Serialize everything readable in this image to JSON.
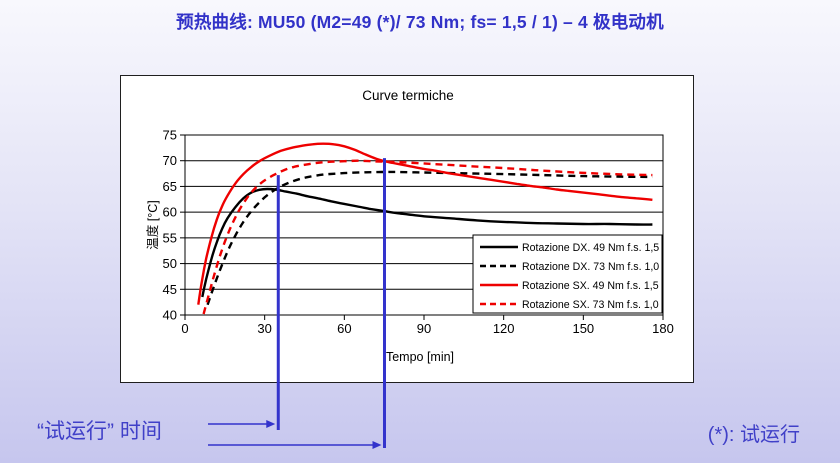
{
  "slide": {
    "title": "预热曲线: MU50 (M2=49 (*)/ 73 Nm; fs= 1,5 / 1) – 4 极电动机",
    "test_run_time_label": "“试运行” 时间",
    "footnote": "(*): 试运行",
    "accent_blue": "#3333cc",
    "background_top": "#f8f8fd",
    "background_bottom": "#c6c6ee"
  },
  "chart_data": {
    "type": "line",
    "title": "Curve termiche",
    "xlabel": "Tempo [min]",
    "ylabel": "温度 [°C]",
    "xlim": [
      0,
      180
    ],
    "ylim": [
      40,
      75
    ],
    "x_ticks": [
      0,
      30,
      60,
      90,
      120,
      150,
      180
    ],
    "y_ticks": [
      40,
      45,
      50,
      55,
      60,
      65,
      70,
      75
    ],
    "grid": "horizontal",
    "legend_position": "inside-right",
    "axis_color": "#000000",
    "series": [
      {
        "name": "Rotazione DX. 49 Nm f.s. 1,5",
        "color": "#000000",
        "style": "solid",
        "points": [
          [
            6.5,
            43.5
          ],
          [
            8,
            47
          ],
          [
            10,
            51
          ],
          [
            12,
            54.2
          ],
          [
            14,
            56.8
          ],
          [
            16,
            58.8
          ],
          [
            19,
            61
          ],
          [
            22,
            62.7
          ],
          [
            25,
            63.8
          ],
          [
            28,
            64.35
          ],
          [
            31,
            64.5
          ],
          [
            34,
            64.4
          ],
          [
            38,
            64
          ],
          [
            42,
            63.6
          ],
          [
            46,
            63.1
          ],
          [
            50,
            62.7
          ],
          [
            55,
            62.1
          ],
          [
            60,
            61.6
          ],
          [
            65,
            61.1
          ],
          [
            70,
            60.6
          ],
          [
            75,
            60.2
          ],
          [
            80,
            59.8
          ],
          [
            90,
            59.2
          ],
          [
            100,
            58.8
          ],
          [
            110,
            58.4
          ],
          [
            120,
            58.1
          ],
          [
            130,
            57.9
          ],
          [
            140,
            57.8
          ],
          [
            150,
            57.7
          ],
          [
            160,
            57.7
          ],
          [
            170,
            57.6
          ],
          [
            176,
            57.6
          ]
        ]
      },
      {
        "name": "Rotazione DX. 73 Nm f.s. 1,0",
        "color": "#000000",
        "style": "dashed",
        "points": [
          [
            8.5,
            42
          ],
          [
            10.5,
            45
          ],
          [
            13,
            48.5
          ],
          [
            16,
            52.3
          ],
          [
            19,
            55.5
          ],
          [
            22,
            58.1
          ],
          [
            25,
            60.2
          ],
          [
            28,
            61.9
          ],
          [
            31,
            63.3
          ],
          [
            35,
            64.7
          ],
          [
            39,
            65.7
          ],
          [
            43,
            66.4
          ],
          [
            47,
            66.9
          ],
          [
            52,
            67.3
          ],
          [
            57,
            67.5
          ],
          [
            62,
            67.65
          ],
          [
            68,
            67.75
          ],
          [
            74,
            67.8
          ],
          [
            80,
            67.8
          ],
          [
            90,
            67.7
          ],
          [
            100,
            67.6
          ],
          [
            110,
            67.5
          ],
          [
            120,
            67.4
          ],
          [
            135,
            67.2
          ],
          [
            150,
            67
          ],
          [
            165,
            66.9
          ],
          [
            176,
            66.85
          ]
        ]
      },
      {
        "name": "Rotazione SX. 49 Nm f.s. 1,5",
        "color": "#ee0000",
        "style": "solid",
        "points": [
          [
            5,
            42
          ],
          [
            6.5,
            47
          ],
          [
            8,
            51
          ],
          [
            10,
            55.2
          ],
          [
            12,
            58.6
          ],
          [
            14,
            61.2
          ],
          [
            16,
            63.2
          ],
          [
            19,
            65.6
          ],
          [
            22,
            67.4
          ],
          [
            25,
            68.8
          ],
          [
            28,
            69.9
          ],
          [
            32,
            71
          ],
          [
            36,
            71.9
          ],
          [
            40,
            72.5
          ],
          [
            44,
            72.9
          ],
          [
            48,
            73.2
          ],
          [
            52,
            73.3
          ],
          [
            56,
            73.2
          ],
          [
            60,
            72.8
          ],
          [
            64,
            72.1
          ],
          [
            68,
            71.2
          ],
          [
            72,
            70.4
          ],
          [
            76,
            69.8
          ],
          [
            80,
            69.4
          ],
          [
            85,
            68.9
          ],
          [
            90,
            68.4
          ],
          [
            95,
            68
          ],
          [
            100,
            67.5
          ],
          [
            105,
            67.1
          ],
          [
            110,
            66.7
          ],
          [
            115,
            66.3
          ],
          [
            120,
            65.9
          ],
          [
            125,
            65.5
          ],
          [
            130,
            65.1
          ],
          [
            135,
            64.8
          ],
          [
            140,
            64.4
          ],
          [
            145,
            64.1
          ],
          [
            150,
            63.8
          ],
          [
            155,
            63.5
          ],
          [
            160,
            63.2
          ],
          [
            165,
            62.9
          ],
          [
            170,
            62.7
          ],
          [
            176,
            62.4
          ]
        ]
      },
      {
        "name": "Rotazione SX. 73 Nm f.s. 1,0",
        "color": "#ee0000",
        "style": "dashed",
        "points": [
          [
            7,
            40.2
          ],
          [
            9,
            44
          ],
          [
            11,
            47.8
          ],
          [
            14,
            52.8
          ],
          [
            17,
            56.8
          ],
          [
            20,
            60
          ],
          [
            23,
            62.5
          ],
          [
            26,
            64.4
          ],
          [
            29,
            65.8
          ],
          [
            33,
            67.1
          ],
          [
            37,
            68.1
          ],
          [
            41,
            68.8
          ],
          [
            45,
            69.2
          ],
          [
            50,
            69.6
          ],
          [
            55,
            69.8
          ],
          [
            60,
            69.9
          ],
          [
            65,
            70
          ],
          [
            70,
            69.9
          ],
          [
            76,
            69.8
          ],
          [
            82,
            69.7
          ],
          [
            92,
            69.4
          ],
          [
            102,
            69.1
          ],
          [
            112,
            68.8
          ],
          [
            122,
            68.5
          ],
          [
            137,
            68
          ],
          [
            152,
            67.6
          ],
          [
            167,
            67.3
          ],
          [
            176,
            67.2
          ]
        ]
      }
    ],
    "annotations": {
      "vertical_markers": [
        {
          "time_min": 35.5,
          "top_temp": 67.0
        },
        {
          "time_min": 75.5,
          "top_temp": 70.3
        }
      ],
      "marker_color": "#3333cc"
    }
  }
}
